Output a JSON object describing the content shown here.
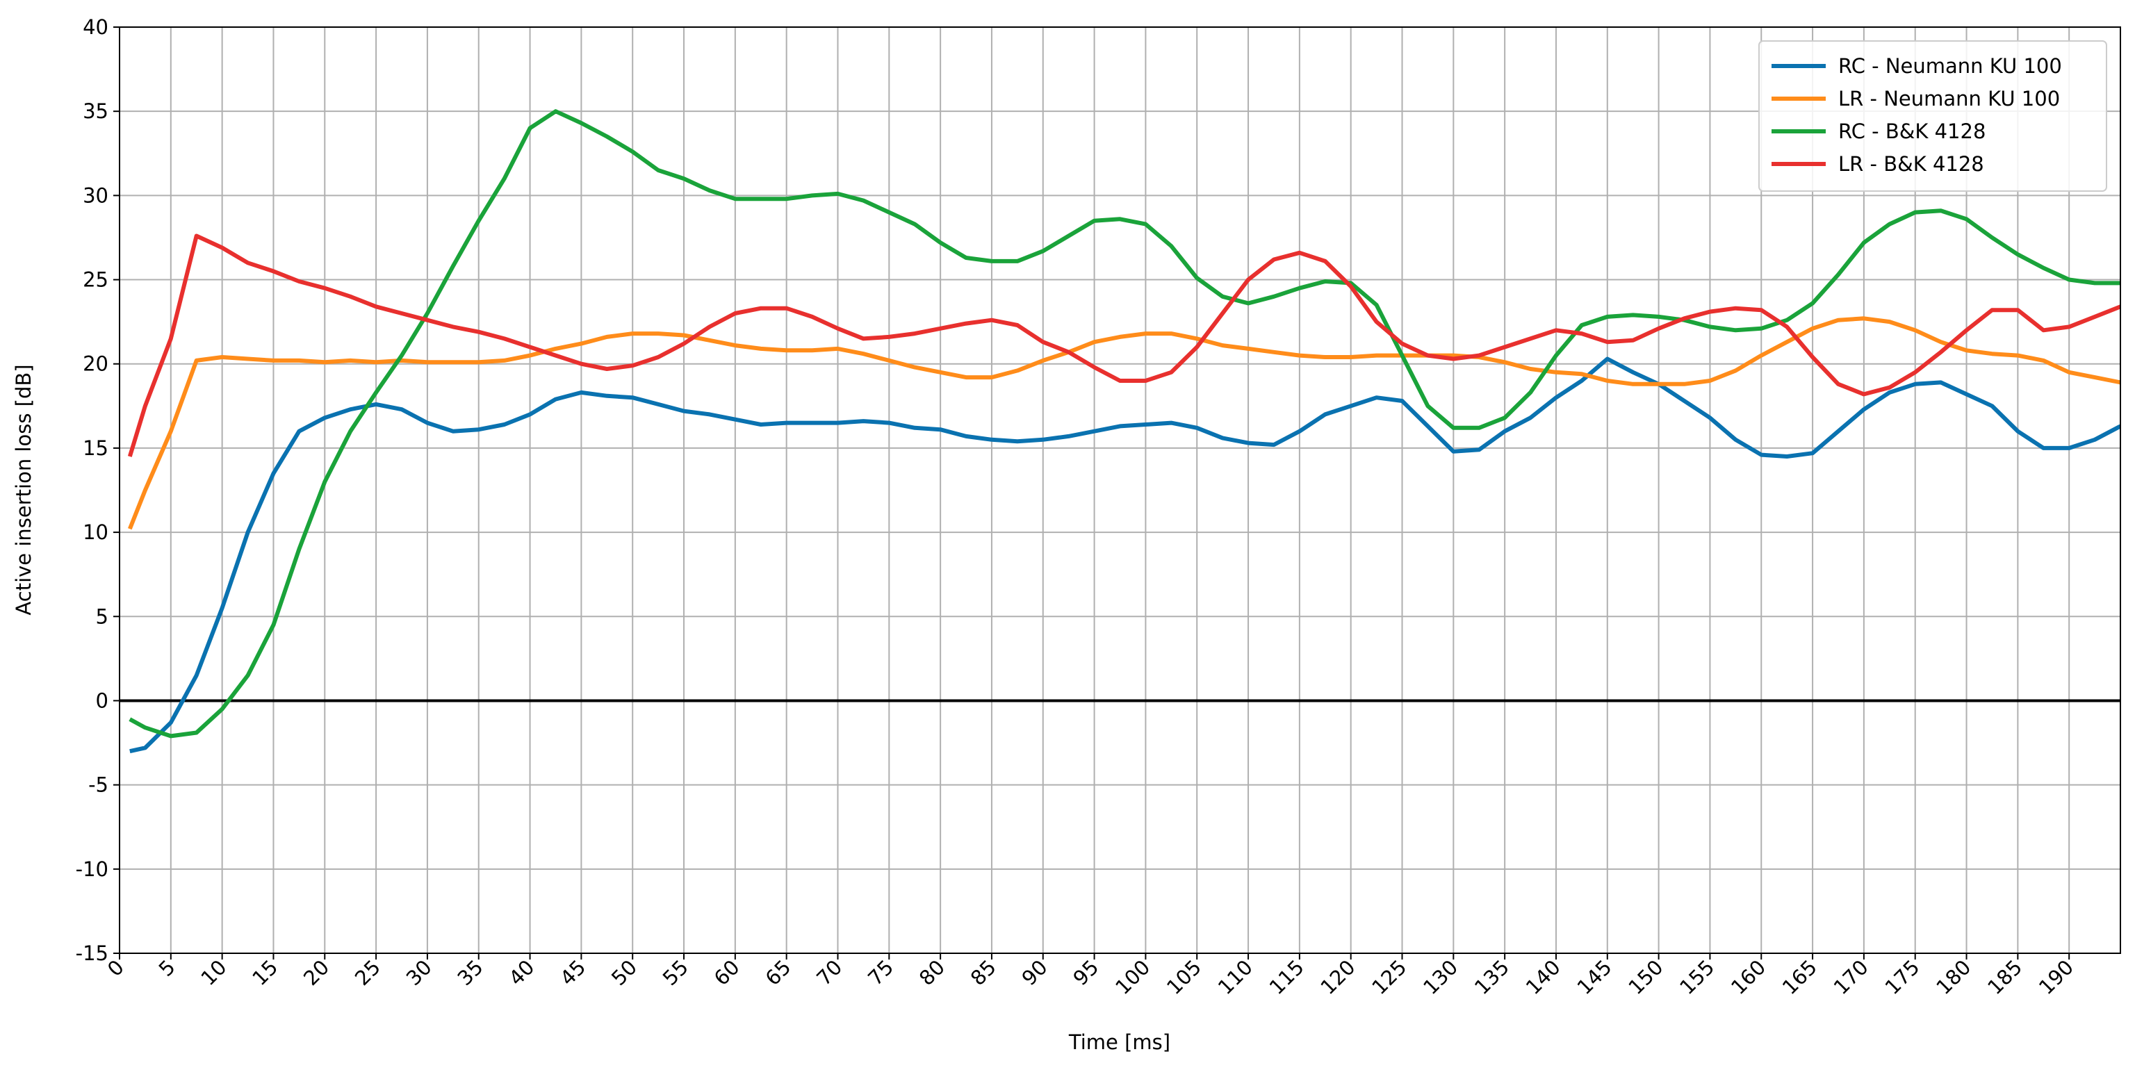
{
  "chart_data": {
    "type": "line",
    "x_label": "Time [ms]",
    "y_label": "Active insertion loss [dB]",
    "x": [
      1,
      2.5,
      5,
      7.5,
      10,
      12.5,
      15,
      17.5,
      20,
      22.5,
      25,
      27.5,
      30,
      32.5,
      35,
      37.5,
      40,
      42.5,
      45,
      47.5,
      50,
      52.5,
      55,
      57.5,
      60,
      62.5,
      65,
      67.5,
      70,
      72.5,
      75,
      77.5,
      80,
      82.5,
      85,
      87.5,
      90,
      92.5,
      95,
      97.5,
      100,
      102.5,
      105,
      107.5,
      110,
      112.5,
      115,
      117.5,
      120,
      122.5,
      125,
      127.5,
      130,
      132.5,
      135,
      137.5,
      140,
      142.5,
      145,
      147.5,
      150,
      152.5,
      155,
      157.5,
      160,
      162.5,
      165,
      167.5,
      170,
      172.5,
      175,
      177.5,
      180,
      182.5,
      185,
      187.5,
      190,
      192.5,
      195
    ],
    "series": [
      {
        "name": "RC - Neumann KU 100",
        "color": "#0a72b0",
        "values": [
          -3,
          -2.8,
          -1.3,
          1.5,
          5.5,
          10,
          13.5,
          16,
          16.8,
          17.3,
          17.6,
          17.3,
          16.5,
          16,
          16.1,
          16.4,
          17,
          17.9,
          18.3,
          18.1,
          18,
          17.6,
          17.2,
          17,
          16.7,
          16.4,
          16.5,
          16.5,
          16.5,
          16.6,
          16.5,
          16.2,
          16.1,
          15.7,
          15.5,
          15.4,
          15.5,
          15.7,
          16,
          16.3,
          16.4,
          16.5,
          16.2,
          15.6,
          15.3,
          15.2,
          16,
          17,
          17.5,
          18,
          17.8,
          16.3,
          14.8,
          14.9,
          16,
          16.8,
          18,
          19,
          20.3,
          19.5,
          18.8,
          17.8,
          16.8,
          15.5,
          14.6,
          14.5,
          14.7,
          16,
          17.3,
          18.3,
          18.8,
          18.9,
          18.2,
          17.5,
          16,
          15,
          15,
          15.5,
          16.3
        ]
      },
      {
        "name": "LR - Neumann KU 100",
        "color": "#ff8c1a",
        "values": [
          10.2,
          12.5,
          16,
          20.2,
          20.4,
          20.3,
          20.2,
          20.2,
          20.1,
          20.2,
          20.1,
          20.2,
          20.1,
          20.1,
          20.1,
          20.2,
          20.5,
          20.9,
          21.2,
          21.6,
          21.8,
          21.8,
          21.7,
          21.4,
          21.1,
          20.9,
          20.8,
          20.8,
          20.9,
          20.6,
          20.2,
          19.8,
          19.5,
          19.2,
          19.2,
          19.6,
          20.2,
          20.7,
          21.3,
          21.6,
          21.8,
          21.8,
          21.5,
          21.1,
          20.9,
          20.7,
          20.5,
          20.4,
          20.4,
          20.5,
          20.5,
          20.5,
          20.5,
          20.4,
          20.1,
          19.7,
          19.5,
          19.4,
          19,
          18.8,
          18.8,
          18.8,
          19,
          19.6,
          20.5,
          21.3,
          22.1,
          22.6,
          22.7,
          22.5,
          22,
          21.3,
          20.8,
          20.6,
          20.5,
          20.2,
          19.5,
          19.2,
          18.9
        ]
      },
      {
        "name": "RC - B&K 4128",
        "color": "#1aa33a",
        "values": [
          -1.1,
          -1.6,
          -2.1,
          -1.9,
          -0.5,
          1.5,
          4.5,
          9,
          13,
          16,
          18.3,
          20.5,
          23,
          25.8,
          28.5,
          31,
          34,
          35,
          34.3,
          33.5,
          32.6,
          31.5,
          31,
          30.3,
          29.8,
          29.8,
          29.8,
          30,
          30.1,
          29.7,
          29,
          28.3,
          27.2,
          26.3,
          26.1,
          26.1,
          26.7,
          27.6,
          28.5,
          28.6,
          28.3,
          27,
          25.1,
          24,
          23.6,
          24,
          24.5,
          24.9,
          24.8,
          23.5,
          20.5,
          17.5,
          16.2,
          16.2,
          16.8,
          18.3,
          20.5,
          22.3,
          22.8,
          22.9,
          22.8,
          22.6,
          22.2,
          22,
          22.1,
          22.6,
          23.6,
          25.3,
          27.2,
          28.3,
          29,
          29.1,
          28.6,
          27.5,
          26.5,
          25.7,
          25,
          24.8,
          24.8
        ]
      },
      {
        "name": "LR - B&K 4128",
        "color": "#e8302e",
        "values": [
          14.5,
          17.5,
          21.5,
          27.6,
          26.9,
          26,
          25.5,
          24.9,
          24.5,
          24,
          23.4,
          23,
          22.6,
          22.2,
          21.9,
          21.5,
          21,
          20.5,
          20,
          19.7,
          19.9,
          20.4,
          21.2,
          22.2,
          23,
          23.3,
          23.3,
          22.8,
          22.1,
          21.5,
          21.6,
          21.8,
          22.1,
          22.4,
          22.6,
          22.3,
          21.3,
          20.7,
          19.8,
          19,
          19,
          19.5,
          21,
          23,
          25,
          26.2,
          26.6,
          26.1,
          24.6,
          22.5,
          21.2,
          20.5,
          20.3,
          20.5,
          21,
          21.5,
          22,
          21.8,
          21.3,
          21.4,
          22.1,
          22.7,
          23.1,
          23.3,
          23.2,
          22.2,
          20.4,
          18.8,
          18.2,
          18.6,
          19.5,
          20.7,
          22,
          23.2,
          23.2,
          22,
          22.2,
          22.8,
          23.4
        ]
      }
    ],
    "xlim": [
      0,
      195
    ],
    "ylim": [
      -15,
      40
    ],
    "xticks": [
      0,
      5,
      10,
      15,
      20,
      25,
      30,
      35,
      40,
      45,
      50,
      55,
      60,
      65,
      70,
      75,
      80,
      85,
      90,
      95,
      100,
      105,
      110,
      115,
      120,
      125,
      130,
      135,
      140,
      145,
      150,
      155,
      160,
      165,
      170,
      175,
      180,
      185,
      190
    ],
    "yticks": [
      -15,
      -10,
      -5,
      0,
      5,
      10,
      15,
      20,
      25,
      30,
      35,
      40
    ],
    "hline": 0,
    "grid": true,
    "legend": "upper right"
  }
}
